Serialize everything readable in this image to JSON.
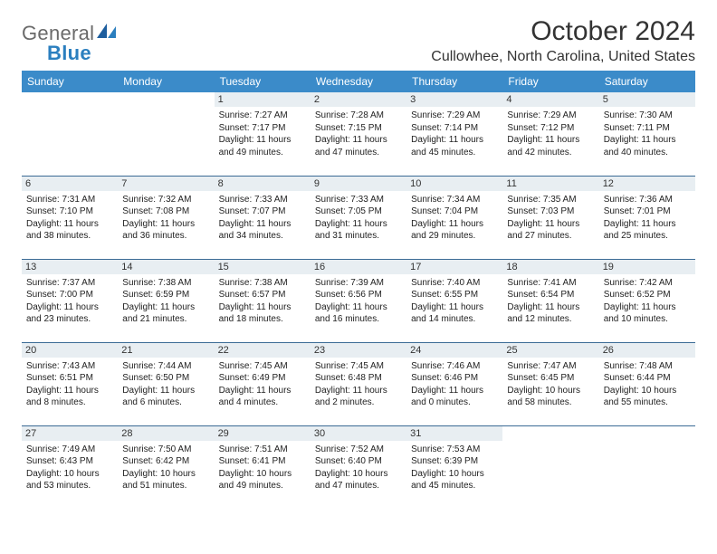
{
  "logo": {
    "word1": "General",
    "word2": "Blue"
  },
  "title": "October 2024",
  "location": "Cullowhee, North Carolina, United States",
  "colors": {
    "header_bg": "#3b8bc9",
    "header_text": "#ffffff",
    "row_border": "#3b6b95",
    "daynum_bg": "#e8eef2",
    "logo_gray": "#6a6a6a",
    "logo_blue": "#2b7fbf"
  },
  "daysOfWeek": [
    "Sunday",
    "Monday",
    "Tuesday",
    "Wednesday",
    "Thursday",
    "Friday",
    "Saturday"
  ],
  "weeks": [
    [
      null,
      null,
      {
        "n": 1,
        "sr": "7:27 AM",
        "ss": "7:17 PM",
        "dl": "11 hours and 49 minutes."
      },
      {
        "n": 2,
        "sr": "7:28 AM",
        "ss": "7:15 PM",
        "dl": "11 hours and 47 minutes."
      },
      {
        "n": 3,
        "sr": "7:29 AM",
        "ss": "7:14 PM",
        "dl": "11 hours and 45 minutes."
      },
      {
        "n": 4,
        "sr": "7:29 AM",
        "ss": "7:12 PM",
        "dl": "11 hours and 42 minutes."
      },
      {
        "n": 5,
        "sr": "7:30 AM",
        "ss": "7:11 PM",
        "dl": "11 hours and 40 minutes."
      }
    ],
    [
      {
        "n": 6,
        "sr": "7:31 AM",
        "ss": "7:10 PM",
        "dl": "11 hours and 38 minutes."
      },
      {
        "n": 7,
        "sr": "7:32 AM",
        "ss": "7:08 PM",
        "dl": "11 hours and 36 minutes."
      },
      {
        "n": 8,
        "sr": "7:33 AM",
        "ss": "7:07 PM",
        "dl": "11 hours and 34 minutes."
      },
      {
        "n": 9,
        "sr": "7:33 AM",
        "ss": "7:05 PM",
        "dl": "11 hours and 31 minutes."
      },
      {
        "n": 10,
        "sr": "7:34 AM",
        "ss": "7:04 PM",
        "dl": "11 hours and 29 minutes."
      },
      {
        "n": 11,
        "sr": "7:35 AM",
        "ss": "7:03 PM",
        "dl": "11 hours and 27 minutes."
      },
      {
        "n": 12,
        "sr": "7:36 AM",
        "ss": "7:01 PM",
        "dl": "11 hours and 25 minutes."
      }
    ],
    [
      {
        "n": 13,
        "sr": "7:37 AM",
        "ss": "7:00 PM",
        "dl": "11 hours and 23 minutes."
      },
      {
        "n": 14,
        "sr": "7:38 AM",
        "ss": "6:59 PM",
        "dl": "11 hours and 21 minutes."
      },
      {
        "n": 15,
        "sr": "7:38 AM",
        "ss": "6:57 PM",
        "dl": "11 hours and 18 minutes."
      },
      {
        "n": 16,
        "sr": "7:39 AM",
        "ss": "6:56 PM",
        "dl": "11 hours and 16 minutes."
      },
      {
        "n": 17,
        "sr": "7:40 AM",
        "ss": "6:55 PM",
        "dl": "11 hours and 14 minutes."
      },
      {
        "n": 18,
        "sr": "7:41 AM",
        "ss": "6:54 PM",
        "dl": "11 hours and 12 minutes."
      },
      {
        "n": 19,
        "sr": "7:42 AM",
        "ss": "6:52 PM",
        "dl": "11 hours and 10 minutes."
      }
    ],
    [
      {
        "n": 20,
        "sr": "7:43 AM",
        "ss": "6:51 PM",
        "dl": "11 hours and 8 minutes."
      },
      {
        "n": 21,
        "sr": "7:44 AM",
        "ss": "6:50 PM",
        "dl": "11 hours and 6 minutes."
      },
      {
        "n": 22,
        "sr": "7:45 AM",
        "ss": "6:49 PM",
        "dl": "11 hours and 4 minutes."
      },
      {
        "n": 23,
        "sr": "7:45 AM",
        "ss": "6:48 PM",
        "dl": "11 hours and 2 minutes."
      },
      {
        "n": 24,
        "sr": "7:46 AM",
        "ss": "6:46 PM",
        "dl": "11 hours and 0 minutes."
      },
      {
        "n": 25,
        "sr": "7:47 AM",
        "ss": "6:45 PM",
        "dl": "10 hours and 58 minutes."
      },
      {
        "n": 26,
        "sr": "7:48 AM",
        "ss": "6:44 PM",
        "dl": "10 hours and 55 minutes."
      }
    ],
    [
      {
        "n": 27,
        "sr": "7:49 AM",
        "ss": "6:43 PM",
        "dl": "10 hours and 53 minutes."
      },
      {
        "n": 28,
        "sr": "7:50 AM",
        "ss": "6:42 PM",
        "dl": "10 hours and 51 minutes."
      },
      {
        "n": 29,
        "sr": "7:51 AM",
        "ss": "6:41 PM",
        "dl": "10 hours and 49 minutes."
      },
      {
        "n": 30,
        "sr": "7:52 AM",
        "ss": "6:40 PM",
        "dl": "10 hours and 47 minutes."
      },
      {
        "n": 31,
        "sr": "7:53 AM",
        "ss": "6:39 PM",
        "dl": "10 hours and 45 minutes."
      },
      null,
      null
    ]
  ],
  "labels": {
    "sunrise": "Sunrise:",
    "sunset": "Sunset:",
    "daylight": "Daylight:"
  }
}
